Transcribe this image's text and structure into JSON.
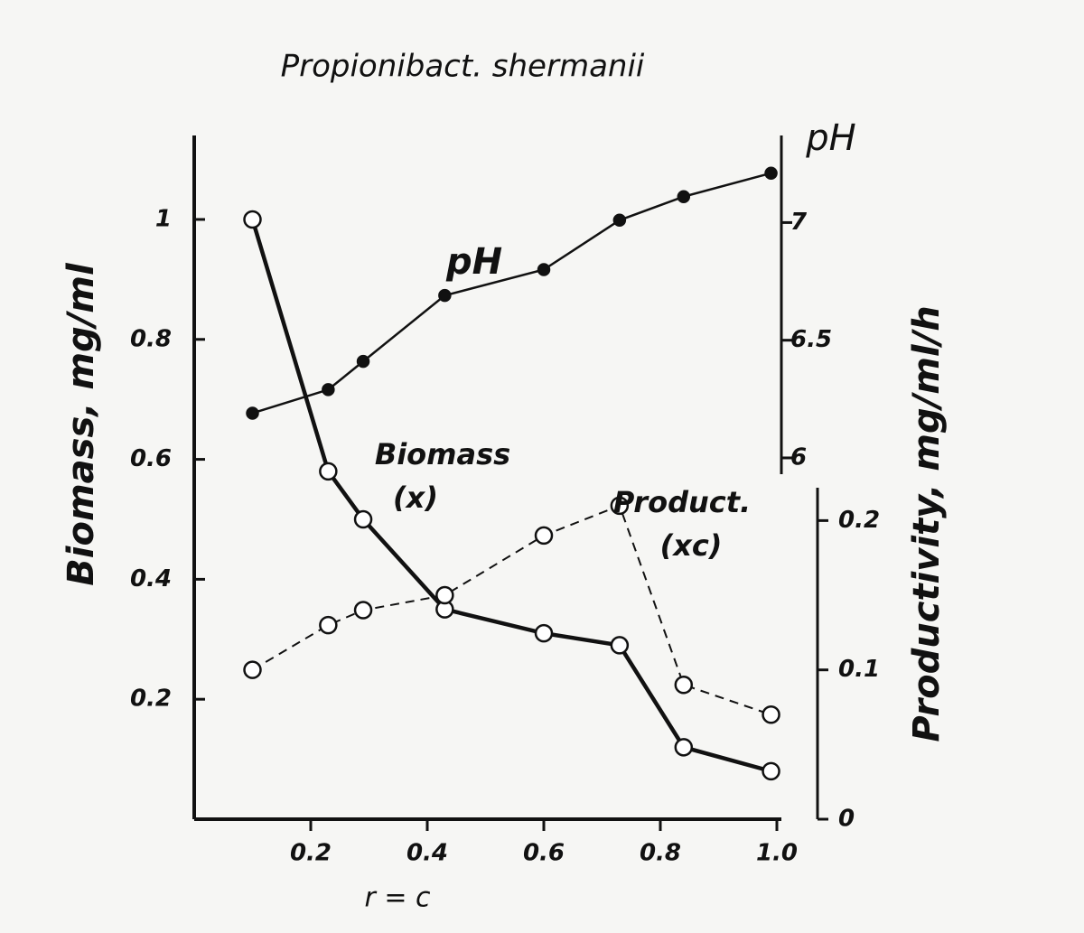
{
  "chart_data": {
    "type": "line",
    "title": "Propionibact. shermanii",
    "x_label": "r = c",
    "y_label": "Biomass, mg/ml",
    "y2_label": "pH",
    "y3_label": "Productivity, mg/ml/h",
    "xlim": [
      0,
      1.0
    ],
    "xticks": [
      0.2,
      0.4,
      0.6,
      0.8,
      {
        "value": 1,
        "label": "1.0"
      }
    ],
    "ylim": [
      0,
      1.14
    ],
    "yticks": [
      0.2,
      0.4,
      0.6,
      0.8,
      1
    ],
    "y2lim": [
      5.95,
      7.37
    ],
    "y2ticks": [
      6,
      6.5,
      7
    ],
    "y3lim": [
      0,
      0.222
    ],
    "y3ticks": [
      0,
      0.1,
      0.2
    ],
    "color": "#111111",
    "series": [
      {
        "name": "pH",
        "axis": "y2",
        "marker": "filled",
        "dashed": false,
        "x": [
          0.1,
          0.23,
          0.29,
          0.43,
          0.6,
          0.73,
          0.84,
          0.99
        ],
        "values": [
          6.19,
          6.29,
          6.41,
          6.69,
          6.8,
          7.01,
          7.11,
          7.21
        ]
      },
      {
        "name": "Biomass",
        "axis": "y",
        "marker": "open",
        "dashed": false,
        "x": [
          0.1,
          0.23,
          0.29,
          0.43,
          0.6,
          0.73,
          0.84,
          0.99
        ],
        "values": [
          1.0,
          0.58,
          0.5,
          0.35,
          0.31,
          0.29,
          0.12,
          0.08
        ]
      },
      {
        "name": "Product.",
        "axis": "y3",
        "marker": "open",
        "dashed": true,
        "x": [
          0.1,
          0.23,
          0.29,
          0.43,
          0.6,
          0.73,
          0.84,
          0.99
        ],
        "values": [
          0.1,
          0.13,
          0.14,
          0.15,
          0.19,
          0.21,
          0.09,
          0.07
        ]
      }
    ],
    "annotations": [
      {
        "lines": [
          "pH"
        ]
      },
      {
        "lines": [
          "Biomass",
          "(x)"
        ]
      },
      {
        "lines": [
          "Product.",
          "(xc)"
        ]
      }
    ]
  }
}
